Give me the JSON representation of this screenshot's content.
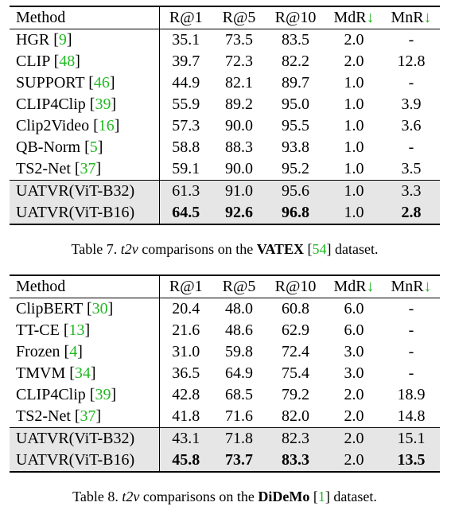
{
  "tables": [
    {
      "columns": [
        [
          {
            "t": "Method"
          }
        ],
        [
          {
            "t": "R@1"
          }
        ],
        [
          {
            "t": "R@5"
          }
        ],
        [
          {
            "t": "R@10"
          }
        ],
        [
          {
            "t": "MdR"
          },
          {
            "t": "↓",
            "g": true
          }
        ],
        [
          {
            "t": "MnR"
          },
          {
            "t": "↓",
            "g": true
          }
        ]
      ],
      "rows": [
        {
          "method": [
            {
              "t": "HGR ["
            },
            {
              "t": "9",
              "g": true
            },
            {
              "t": "]"
            }
          ],
          "cells": [
            {
              "t": "35.1"
            },
            {
              "t": "73.5"
            },
            {
              "t": "83.5"
            },
            {
              "t": "2.0"
            },
            {
              "t": "-"
            }
          ]
        },
        {
          "method": [
            {
              "t": "CLIP ["
            },
            {
              "t": "48",
              "g": true
            },
            {
              "t": "]"
            }
          ],
          "cells": [
            {
              "t": "39.7"
            },
            {
              "t": "72.3"
            },
            {
              "t": "82.2"
            },
            {
              "t": "2.0"
            },
            {
              "t": "12.8"
            }
          ]
        },
        {
          "method": [
            {
              "t": "SUPPORT ["
            },
            {
              "t": "46",
              "g": true
            },
            {
              "t": "]"
            }
          ],
          "cells": [
            {
              "t": "44.9"
            },
            {
              "t": "82.1"
            },
            {
              "t": "89.7"
            },
            {
              "t": "1.0"
            },
            {
              "t": "-"
            }
          ]
        },
        {
          "method": [
            {
              "t": "CLIP4Clip ["
            },
            {
              "t": "39",
              "g": true
            },
            {
              "t": "]"
            }
          ],
          "cells": [
            {
              "t": "55.9"
            },
            {
              "t": "89.2"
            },
            {
              "t": "95.0"
            },
            {
              "t": "1.0"
            },
            {
              "t": "3.9"
            }
          ]
        },
        {
          "method": [
            {
              "t": "Clip2Video ["
            },
            {
              "t": "16",
              "g": true
            },
            {
              "t": "]"
            }
          ],
          "cells": [
            {
              "t": "57.3"
            },
            {
              "t": "90.0"
            },
            {
              "t": "95.5"
            },
            {
              "t": "1.0"
            },
            {
              "t": "3.6"
            }
          ]
        },
        {
          "method": [
            {
              "t": "QB-Norm ["
            },
            {
              "t": "5",
              "g": true
            },
            {
              "t": "]"
            }
          ],
          "cells": [
            {
              "t": "58.8"
            },
            {
              "t": "88.3"
            },
            {
              "t": "93.8"
            },
            {
              "t": "1.0"
            },
            {
              "t": "-"
            }
          ]
        },
        {
          "method": [
            {
              "t": "TS2-Net ["
            },
            {
              "t": "37",
              "g": true
            },
            {
              "t": "]"
            }
          ],
          "cells": [
            {
              "t": "59.1"
            },
            {
              "t": "90.0"
            },
            {
              "t": "95.2"
            },
            {
              "t": "1.0"
            },
            {
              "t": "3.5"
            }
          ]
        },
        {
          "shaded": true,
          "method": [
            {
              "t": "UATVR(ViT-B32)"
            }
          ],
          "cells": [
            {
              "t": "61.3"
            },
            {
              "t": "91.0"
            },
            {
              "t": "95.6"
            },
            {
              "t": "1.0"
            },
            {
              "t": "3.3"
            }
          ]
        },
        {
          "shaded": true,
          "method": [
            {
              "t": "UATVR(ViT-B16)"
            }
          ],
          "cells": [
            {
              "t": "64.5",
              "b": true
            },
            {
              "t": "92.6",
              "b": true
            },
            {
              "t": "96.8",
              "b": true
            },
            {
              "t": "1.0"
            },
            {
              "t": "2.8",
              "b": true
            }
          ]
        }
      ],
      "caption": [
        {
          "t": "Table 7. "
        },
        {
          "t": "t2v",
          "i": true
        },
        {
          "t": " comparisons on the "
        },
        {
          "t": "VATEX",
          "b": true
        },
        {
          "t": " ["
        },
        {
          "t": "54",
          "g": true
        },
        {
          "t": "] dataset."
        }
      ]
    },
    {
      "columns": [
        [
          {
            "t": "Method"
          }
        ],
        [
          {
            "t": "R@1"
          }
        ],
        [
          {
            "t": "R@5"
          }
        ],
        [
          {
            "t": "R@10"
          }
        ],
        [
          {
            "t": "MdR"
          },
          {
            "t": "↓",
            "g": true
          }
        ],
        [
          {
            "t": "MnR"
          },
          {
            "t": "↓",
            "g": true
          }
        ]
      ],
      "rows": [
        {
          "method": [
            {
              "t": "ClipBERT ["
            },
            {
              "t": "30",
              "g": true
            },
            {
              "t": "]"
            }
          ],
          "cells": [
            {
              "t": "20.4"
            },
            {
              "t": "48.0"
            },
            {
              "t": "60.8"
            },
            {
              "t": "6.0"
            },
            {
              "t": "-"
            }
          ]
        },
        {
          "method": [
            {
              "t": "TT-CE ["
            },
            {
              "t": "13",
              "g": true
            },
            {
              "t": "]"
            }
          ],
          "cells": [
            {
              "t": "21.6"
            },
            {
              "t": "48.6"
            },
            {
              "t": "62.9"
            },
            {
              "t": "6.0"
            },
            {
              "t": "-"
            }
          ]
        },
        {
          "method": [
            {
              "t": "Frozen ["
            },
            {
              "t": "4",
              "g": true
            },
            {
              "t": "]"
            }
          ],
          "cells": [
            {
              "t": "31.0"
            },
            {
              "t": "59.8"
            },
            {
              "t": "72.4"
            },
            {
              "t": "3.0"
            },
            {
              "t": "-"
            }
          ]
        },
        {
          "method": [
            {
              "t": "TMVM ["
            },
            {
              "t": "34",
              "g": true
            },
            {
              "t": "]"
            }
          ],
          "cells": [
            {
              "t": "36.5"
            },
            {
              "t": "64.9"
            },
            {
              "t": "75.4"
            },
            {
              "t": "3.0"
            },
            {
              "t": "-"
            }
          ]
        },
        {
          "method": [
            {
              "t": "CLIP4Clip ["
            },
            {
              "t": "39",
              "g": true
            },
            {
              "t": "]"
            }
          ],
          "cells": [
            {
              "t": "42.8"
            },
            {
              "t": "68.5"
            },
            {
              "t": "79.2"
            },
            {
              "t": "2.0"
            },
            {
              "t": "18.9"
            }
          ]
        },
        {
          "method": [
            {
              "t": "TS2-Net ["
            },
            {
              "t": "37",
              "g": true
            },
            {
              "t": "]"
            }
          ],
          "cells": [
            {
              "t": "41.8"
            },
            {
              "t": "71.6"
            },
            {
              "t": "82.0"
            },
            {
              "t": "2.0"
            },
            {
              "t": "14.8"
            }
          ]
        },
        {
          "shaded": true,
          "method": [
            {
              "t": "UATVR(ViT-B32)"
            }
          ],
          "cells": [
            {
              "t": "43.1"
            },
            {
              "t": "71.8"
            },
            {
              "t": "82.3"
            },
            {
              "t": "2.0"
            },
            {
              "t": "15.1"
            }
          ]
        },
        {
          "shaded": true,
          "method": [
            {
              "t": "UATVR(ViT-B16)"
            }
          ],
          "cells": [
            {
              "t": "45.8",
              "b": true
            },
            {
              "t": "73.7",
              "b": true
            },
            {
              "t": "83.3",
              "b": true
            },
            {
              "t": "2.0"
            },
            {
              "t": "13.5",
              "b": true
            }
          ]
        }
      ],
      "caption": [
        {
          "t": "Table 8. "
        },
        {
          "t": "t2v",
          "i": true
        },
        {
          "t": " comparisons on the "
        },
        {
          "t": "DiDeMo",
          "b": true
        },
        {
          "t": " ["
        },
        {
          "t": "1",
          "g": true
        },
        {
          "t": "] dataset."
        }
      ]
    }
  ]
}
